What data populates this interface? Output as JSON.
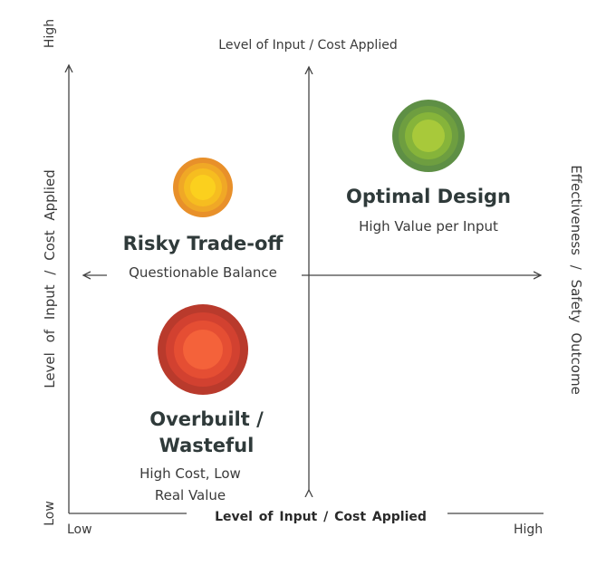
{
  "axes": {
    "y_high": "High",
    "y_low": "Low",
    "x_low": "Low",
    "x_high": "High",
    "left_label": "Level of Input / Cost Applied",
    "top_label": "Level of Input / Cost Applied",
    "right_label": "Effectiveness / Safety Outcome",
    "bottom_label": "Level of Input / Cost Applied"
  },
  "quadrants": {
    "optimal": {
      "title": "Optimal Design",
      "subtitle": "High Value per Input",
      "color": "#7fae3a"
    },
    "risky": {
      "title": "Risky Trade-off",
      "subtitle": "Questionable Balance",
      "color": "#f3b21d"
    },
    "overbuilt": {
      "title_line1": "Overbuilt /",
      "title_line2": "Wasteful",
      "subtitle_line1": "High Cost, Low",
      "subtitle_line2": "Real Value",
      "color": "#e0482c"
    }
  }
}
